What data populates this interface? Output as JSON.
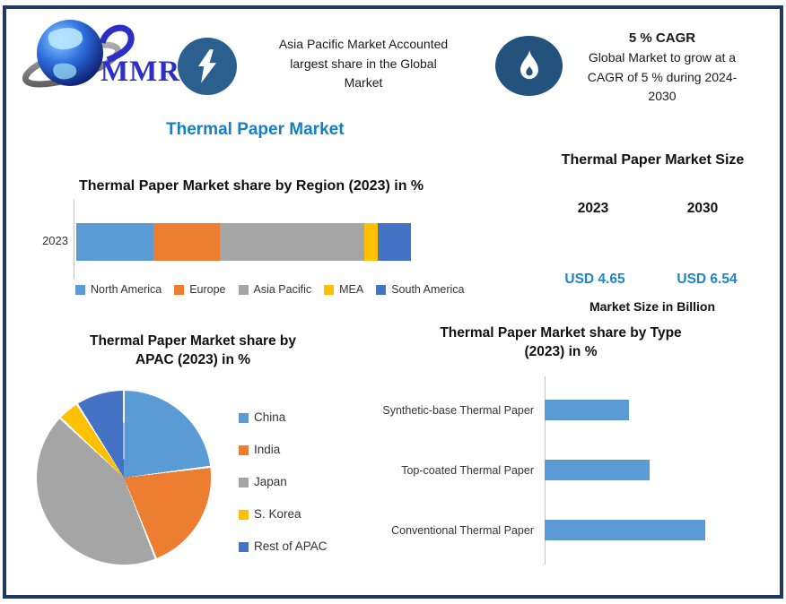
{
  "brand": {
    "logo_text": "MMR"
  },
  "header": {
    "highlight1_lines": [
      "Asia Pacific Market Accounted",
      "largest share in the Global",
      "Market"
    ],
    "cagr_title": "5 % CAGR",
    "cagr_lines": [
      "Global Market to grow at a",
      "CAGR of 5 % during 2024-",
      "2030"
    ]
  },
  "page_title": "Thermal Paper Market",
  "colors": {
    "border": "#1f3864",
    "accent_blue": "#137fc4",
    "value_blue": "#1b86c8",
    "lightning_circle": "#2b5f8e",
    "flame_circle": "#23527d",
    "axis_gray": "#c3c3c3"
  },
  "chart_data": [
    {
      "id": "region_share",
      "type": "bar",
      "subtype": "stacked-horizontal",
      "title": "Thermal Paper Market share by Region (2023) in %",
      "categories": [
        "2023"
      ],
      "series": [
        {
          "name": "North America",
          "value": 23,
          "color": "#5B9BD5"
        },
        {
          "name": "Europe",
          "value": 20,
          "color": "#ED7D31"
        },
        {
          "name": "Asia Pacific",
          "value": 43,
          "color": "#A5A5A5"
        },
        {
          "name": "MEA",
          "value": 4,
          "color": "#FFC000"
        },
        {
          "name": "South America",
          "value": 10,
          "color": "#4472C4"
        }
      ],
      "xlim": [
        0,
        100
      ],
      "legend_position": "bottom",
      "grid": false
    },
    {
      "id": "apac_share",
      "type": "pie",
      "title_lines": [
        "Thermal Paper Market share by",
        "APAC (2023) in %"
      ],
      "slices": [
        {
          "name": "China",
          "value": 23,
          "color": "#5B9BD5"
        },
        {
          "name": "India",
          "value": 21,
          "color": "#ED7D31"
        },
        {
          "name": "Japan",
          "value": 43,
          "color": "#A5A5A5"
        },
        {
          "name": "S. Korea",
          "value": 4,
          "color": "#FFC000"
        },
        {
          "name": "Rest of APAC",
          "value": 9,
          "color": "#4472C4"
        }
      ],
      "start_angle": 0,
      "legend_position": "right"
    },
    {
      "id": "type_share",
      "type": "bar",
      "subtype": "horizontal",
      "title_lines": [
        "Thermal Paper Market share by Type",
        "(2023) in %"
      ],
      "categories": [
        "Synthetic-base Thermal Paper",
        "Top-coated Thermal Paper",
        "Conventional Thermal Paper"
      ],
      "values": [
        24,
        30,
        46
      ],
      "bar_color": "#5B9BD5",
      "xlim": [
        0,
        50
      ],
      "grid": false
    },
    {
      "id": "market_size",
      "type": "table",
      "title": "Thermal Paper Market Size",
      "columns": [
        "2023",
        "2030"
      ],
      "rows": [
        [
          "USD 4.65",
          "USD 6.54"
        ]
      ],
      "caption": "Market Size in Billion"
    }
  ]
}
